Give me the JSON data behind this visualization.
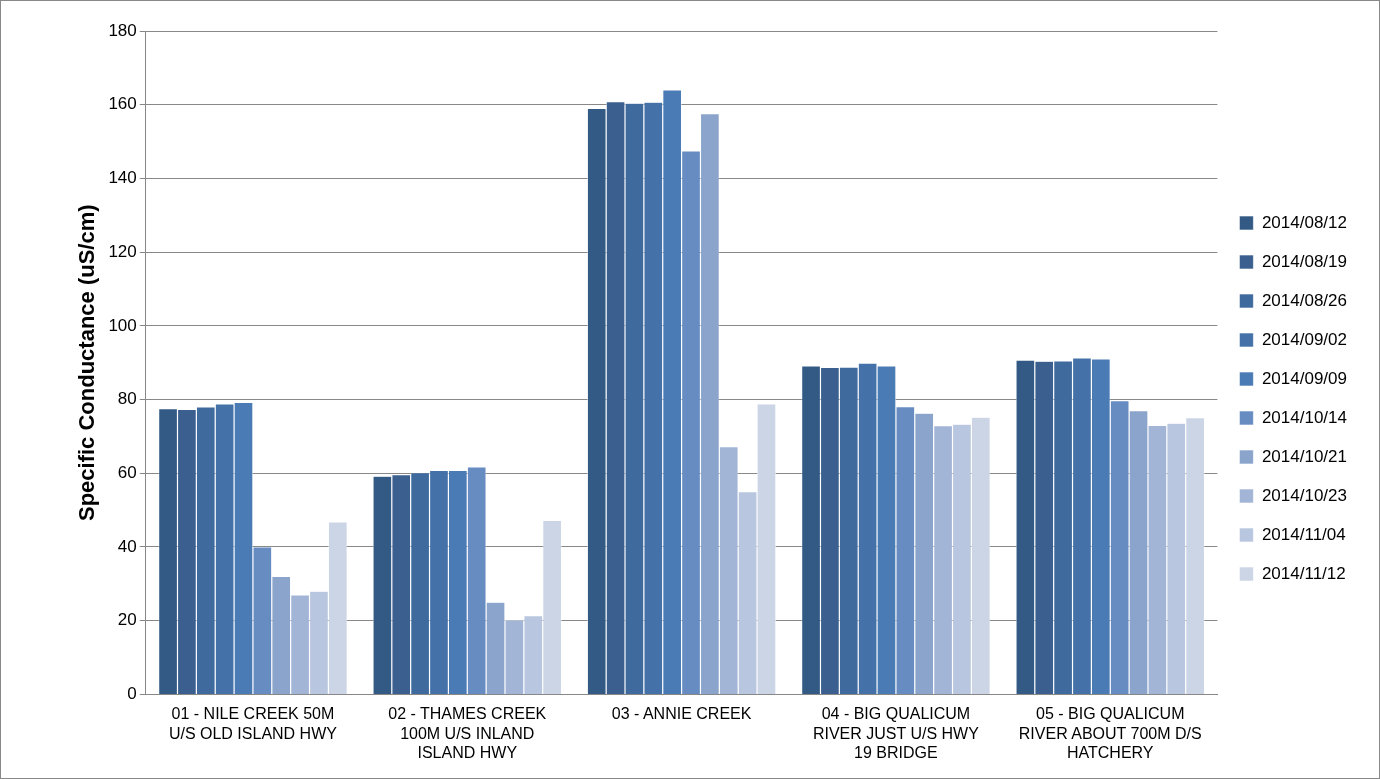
{
  "chart_data": {
    "type": "bar",
    "ylabel": "Specific Conductance (uS/cm)",
    "categories": [
      "01 - NILE CREEK 50M U/S OLD ISLAND HWY",
      "02 - THAMES CREEK 100M U/S INLAND ISLAND HWY",
      "03 - ANNIE CREEK",
      "04 - BIG QUALICUM RIVER JUST U/S HWY 19 BRIDGE",
      "05 - BIG QUALICUM RIVER ABOUT 700M D/S HATCHERY"
    ],
    "series": [
      {
        "name": "2014/08/12",
        "color": "#335a85",
        "values": [
          77.5,
          59.2,
          159,
          89.1,
          90.7
        ]
      },
      {
        "name": "2014/08/19",
        "color": "#3b5f8f",
        "values": [
          77.3,
          59.6,
          160.8,
          88.7,
          90.4
        ]
      },
      {
        "name": "2014/08/26",
        "color": "#3f6a9e",
        "values": [
          78,
          60.2,
          160.4,
          88.8,
          90.5
        ]
      },
      {
        "name": "2014/09/02",
        "color": "#4472a8",
        "values": [
          78.8,
          60.8,
          160.7,
          89.9,
          91.3
        ]
      },
      {
        "name": "2014/09/09",
        "color": "#4a7bb5",
        "values": [
          79.2,
          60.8,
          164,
          89.1,
          91
        ]
      },
      {
        "name": "2014/10/14",
        "color": "#668cc2",
        "values": [
          40,
          61.7,
          147.5,
          78.1,
          79.7
        ]
      },
      {
        "name": "2014/10/21",
        "color": "#8aa4cc",
        "values": [
          32,
          25,
          157.6,
          76.3,
          77
        ]
      },
      {
        "name": "2014/10/23",
        "color": "#a3b5d6",
        "values": [
          27,
          20.2,
          67.2,
          72.9,
          73
        ]
      },
      {
        "name": "2014/11/04",
        "color": "#b9c6df",
        "values": [
          28,
          21.4,
          55,
          73.3,
          73.6
        ]
      },
      {
        "name": "2014/11/12",
        "color": "#cbd5e6",
        "values": [
          46.8,
          47.2,
          78.8,
          75.2,
          75.1
        ]
      }
    ],
    "ylim": [
      0,
      180
    ],
    "yticks": [
      0,
      20,
      40,
      60,
      80,
      100,
      120,
      140,
      160,
      180
    ],
    "grid": "y",
    "legend": "right"
  }
}
